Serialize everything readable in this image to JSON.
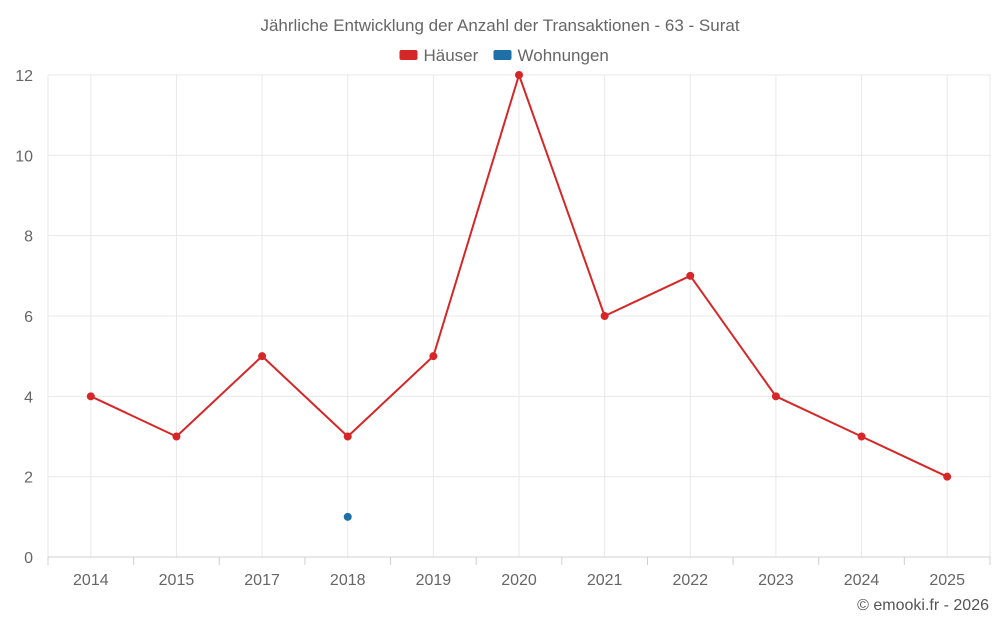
{
  "chart_data": {
    "type": "line",
    "title": "Jährliche Entwicklung der Anzahl der Transaktionen - 63 - Surat",
    "categories": [
      "2014",
      "2015",
      "2017",
      "2018",
      "2019",
      "2020",
      "2021",
      "2022",
      "2023",
      "2024",
      "2025"
    ],
    "series": [
      {
        "name": "Häuser",
        "color": "#d62728",
        "values": [
          4,
          3,
          5,
          3,
          5,
          12,
          6,
          7,
          4,
          3,
          2
        ]
      },
      {
        "name": "Wohnungen",
        "color": "#1f6fa8",
        "values": [
          null,
          null,
          null,
          1,
          null,
          null,
          null,
          null,
          null,
          null,
          null
        ]
      }
    ],
    "ylim": [
      0,
      12
    ],
    "yticks": [
      "0",
      "2",
      "4",
      "6",
      "8",
      "10",
      "12"
    ],
    "xlabel": "",
    "ylabel": "",
    "grid": true,
    "legend_position": "top-center"
  },
  "credit": "© emooki.fr - 2026"
}
